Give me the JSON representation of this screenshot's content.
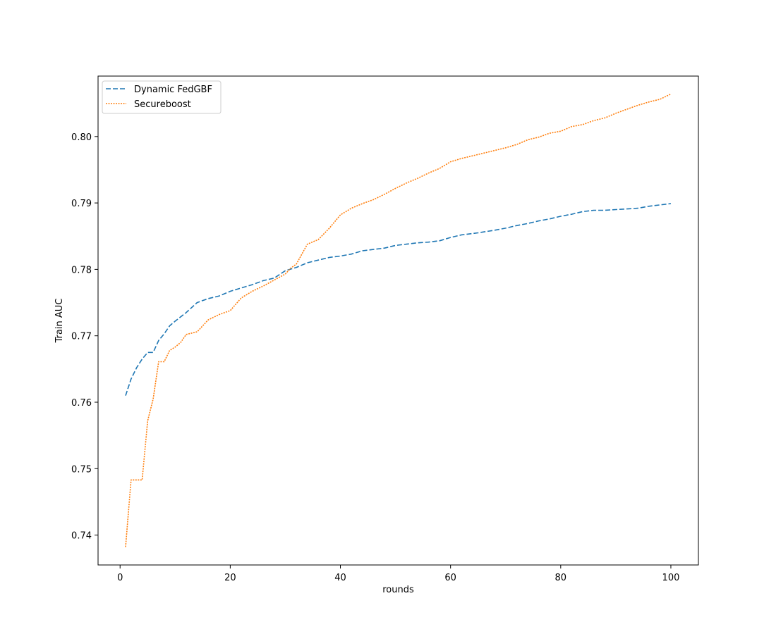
{
  "chart_data": {
    "type": "line",
    "title": "",
    "xlabel": "rounds",
    "ylabel": "Train AUC",
    "xlim": [
      -4,
      105
    ],
    "ylim": [
      0.7355,
      0.8091
    ],
    "x_ticks": [
      0,
      20,
      40,
      60,
      80,
      100
    ],
    "y_ticks": [
      0.74,
      0.75,
      0.76,
      0.77,
      0.78,
      0.79,
      0.8
    ],
    "grid": false,
    "legend_position": "top-left",
    "series": [
      {
        "name": "Dynamic FedGBF",
        "color": "#1f77b4",
        "style": "dashed",
        "x": [
          1,
          2,
          3,
          4,
          5,
          6,
          7,
          8,
          9,
          10,
          12,
          14,
          16,
          18,
          20,
          22,
          24,
          26,
          28,
          30,
          32,
          34,
          36,
          38,
          40,
          42,
          44,
          46,
          48,
          50,
          52,
          54,
          56,
          58,
          60,
          62,
          65,
          68,
          70,
          72,
          74,
          76,
          78,
          80,
          82,
          84,
          86,
          88,
          90,
          92,
          94,
          96,
          98,
          100
        ],
        "y": [
          0.761,
          0.7635,
          0.7652,
          0.7665,
          0.7675,
          0.7675,
          0.7693,
          0.7703,
          0.7715,
          0.7722,
          0.7735,
          0.775,
          0.7756,
          0.776,
          0.7767,
          0.7772,
          0.7777,
          0.7783,
          0.7787,
          0.7798,
          0.7803,
          0.781,
          0.7814,
          0.7818,
          0.782,
          0.7823,
          0.7828,
          0.783,
          0.7832,
          0.7836,
          0.7838,
          0.784,
          0.7841,
          0.7843,
          0.7848,
          0.7852,
          0.7855,
          0.7859,
          0.7862,
          0.7866,
          0.7869,
          0.7873,
          0.7876,
          0.788,
          0.7883,
          0.7887,
          0.7889,
          0.7889,
          0.789,
          0.7891,
          0.7892,
          0.7895,
          0.7897,
          0.7899
        ]
      },
      {
        "name": "Secureboost",
        "color": "#ff7f0e",
        "style": "dotted",
        "x": [
          1,
          2,
          3,
          4,
          5,
          6,
          7,
          8,
          9,
          10,
          11,
          12,
          14,
          16,
          18,
          20,
          22,
          24,
          26,
          28,
          30,
          31,
          32,
          34,
          36,
          38,
          40,
          42,
          44,
          46,
          48,
          50,
          52,
          54,
          56,
          58,
          60,
          62,
          65,
          68,
          70,
          72,
          74,
          76,
          78,
          80,
          82,
          84,
          86,
          88,
          90,
          92,
          94,
          96,
          98,
          100
        ],
        "y": [
          0.7382,
          0.7483,
          0.7483,
          0.7483,
          0.7572,
          0.7605,
          0.7661,
          0.7661,
          0.7678,
          0.7683,
          0.769,
          0.7702,
          0.7706,
          0.7724,
          0.7732,
          0.7738,
          0.7757,
          0.7767,
          0.7775,
          0.7784,
          0.7793,
          0.7802,
          0.7808,
          0.7838,
          0.7845,
          0.7862,
          0.7882,
          0.7892,
          0.7899,
          0.7905,
          0.7913,
          0.7922,
          0.793,
          0.7937,
          0.7945,
          0.7952,
          0.7962,
          0.7967,
          0.7973,
          0.7979,
          0.7983,
          0.7988,
          0.7995,
          0.7999,
          0.8005,
          0.8008,
          0.8015,
          0.8018,
          0.8024,
          0.8028,
          0.8035,
          0.8041,
          0.8047,
          0.8052,
          0.8056,
          0.8064
        ]
      }
    ]
  }
}
